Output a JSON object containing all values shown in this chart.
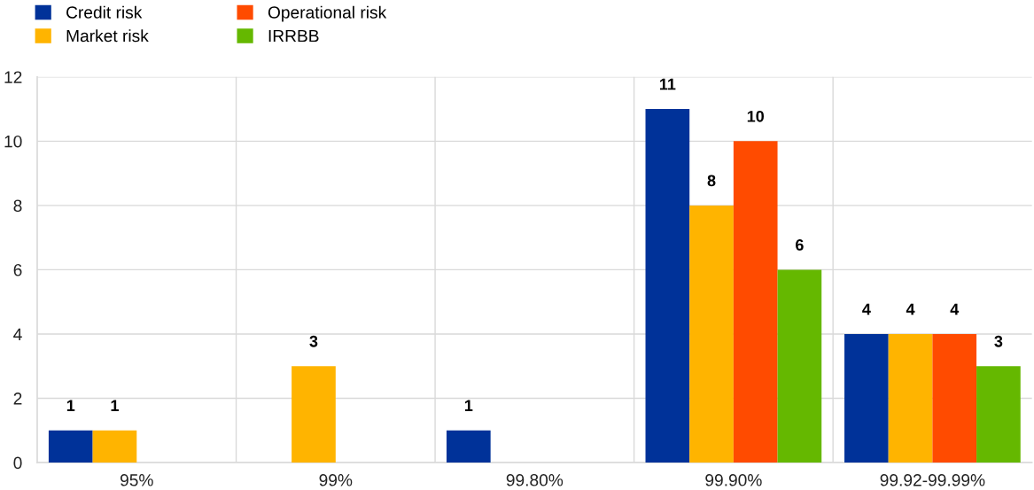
{
  "chart_data": {
    "type": "bar",
    "categories": [
      "95%",
      "99%",
      "99.80%",
      "99.90%",
      "99.92-99.99%"
    ],
    "series": [
      {
        "name": "Credit risk",
        "color": "#003299",
        "values": [
          1,
          null,
          1,
          11,
          4
        ]
      },
      {
        "name": "Market risk",
        "color": "#ffb400",
        "values": [
          1,
          3,
          null,
          8,
          4
        ]
      },
      {
        "name": "Operational risk",
        "color": "#ff4b00",
        "values": [
          null,
          null,
          null,
          10,
          4
        ]
      },
      {
        "name": "IRRBB",
        "color": "#65b800",
        "values": [
          null,
          null,
          null,
          6,
          3
        ]
      }
    ],
    "ylim": [
      0,
      12
    ],
    "yticks": [
      0,
      2,
      4,
      6,
      8,
      10,
      12
    ],
    "grid": true,
    "legend": "top left",
    "data_labels": true
  }
}
